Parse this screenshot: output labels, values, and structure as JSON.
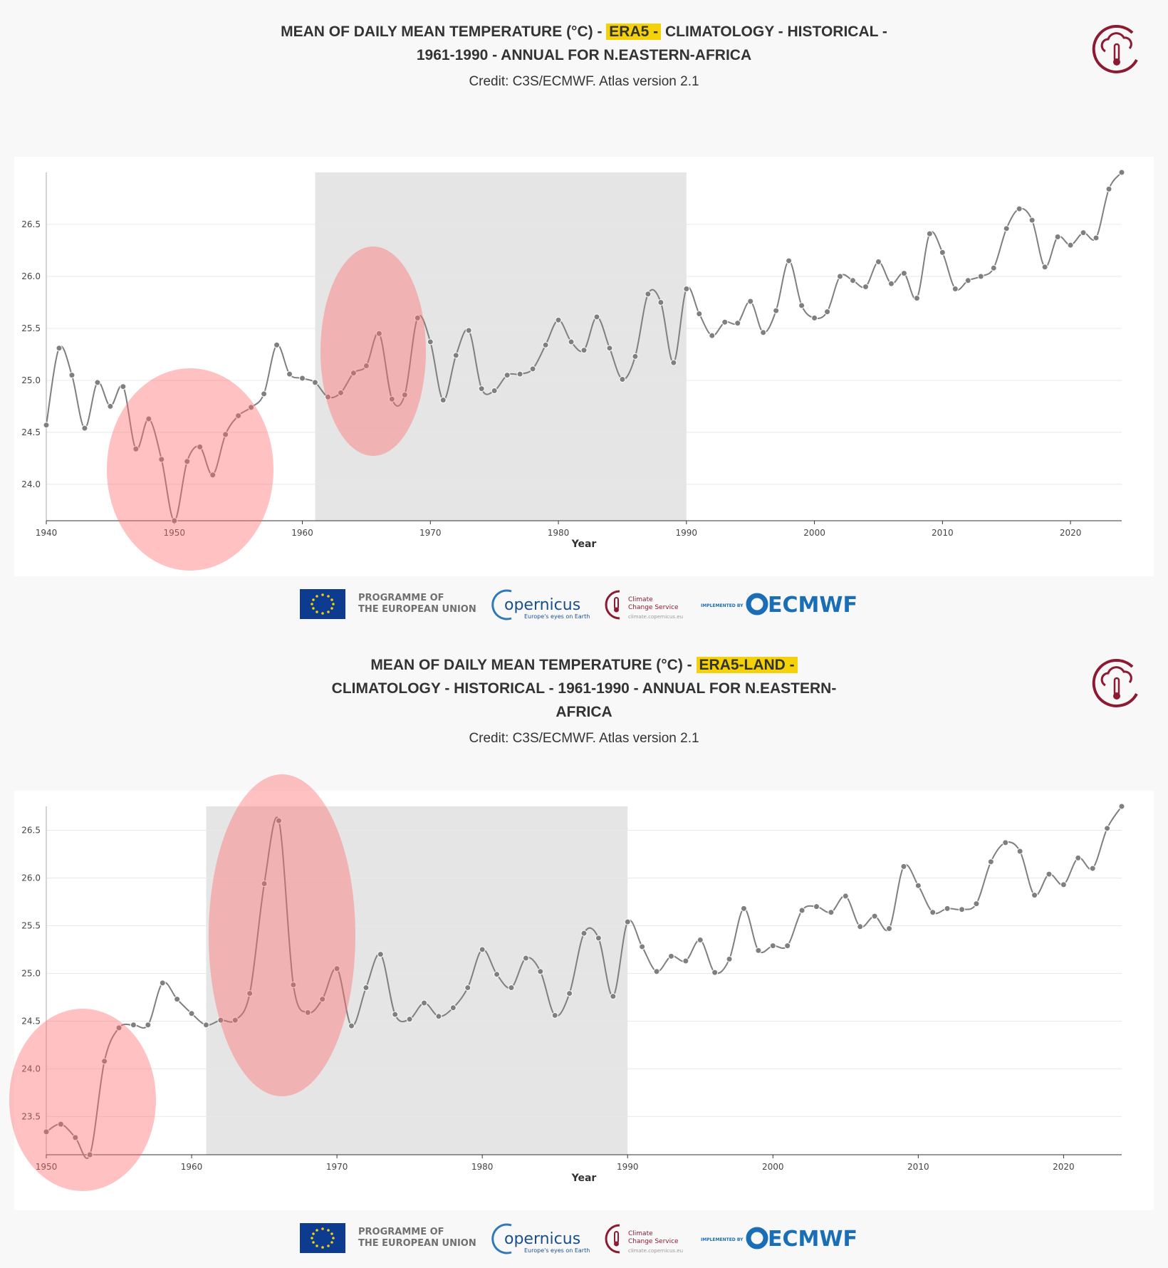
{
  "chart_data": [
    {
      "type": "line",
      "title_start": "MEAN OF DAILY MEAN TEMPERATURE (°C) -",
      "title_dataset": "ERA5 -",
      "title_end": "CLIMATOLOGY - HISTORICAL - 1961-1990 - ANNUAL FOR N.EASTERN-AFRICA",
      "credit": "Credit: C3S/ECMWF. Atlas version 2.1",
      "xlabel": "Year",
      "color": "#7f7f7f",
      "grid": true,
      "highlight_range": [
        1961,
        1990
      ],
      "x": [
        1940,
        1941,
        1942,
        1943,
        1944,
        1945,
        1946,
        1947,
        1948,
        1949,
        1950,
        1951,
        1952,
        1953,
        1954,
        1955,
        1956,
        1957,
        1958,
        1959,
        1960,
        1961,
        1962,
        1963,
        1964,
        1965,
        1966,
        1967,
        1968,
        1969,
        1970,
        1971,
        1972,
        1973,
        1974,
        1975,
        1976,
        1977,
        1978,
        1979,
        1980,
        1981,
        1982,
        1983,
        1984,
        1985,
        1986,
        1987,
        1988,
        1989,
        1990,
        1991,
        1992,
        1993,
        1994,
        1995,
        1996,
        1997,
        1998,
        1999,
        2000,
        2001,
        2002,
        2003,
        2004,
        2005,
        2006,
        2007,
        2008,
        2009,
        2010,
        2011,
        2012,
        2013,
        2014,
        2015,
        2016,
        2017,
        2018,
        2019,
        2020,
        2021,
        2022,
        2023,
        2024
      ],
      "values": [
        24.57,
        25.31,
        25.05,
        24.54,
        24.98,
        24.75,
        24.94,
        24.34,
        24.63,
        24.24,
        23.65,
        24.22,
        24.36,
        24.09,
        24.48,
        24.66,
        24.74,
        24.87,
        25.34,
        25.06,
        25.02,
        24.98,
        24.84,
        24.88,
        25.07,
        25.14,
        25.45,
        24.82,
        24.86,
        25.6,
        25.37,
        24.81,
        25.24,
        25.48,
        24.92,
        24.9,
        25.05,
        25.06,
        25.11,
        25.34,
        25.58,
        25.37,
        25.29,
        25.61,
        25.31,
        25.01,
        25.23,
        25.83,
        25.75,
        25.17,
        25.88,
        25.64,
        25.43,
        25.56,
        25.55,
        25.76,
        25.46,
        25.67,
        26.15,
        25.72,
        25.6,
        25.66,
        26.0,
        25.96,
        25.9,
        26.14,
        25.93,
        26.03,
        25.79,
        26.41,
        26.23,
        25.88,
        25.96,
        26.0,
        26.08,
        26.46,
        26.65,
        26.54,
        26.09,
        26.38,
        26.3,
        26.42,
        26.37,
        26.84,
        27.0
      ],
      "xlim": [
        1940,
        2024
      ],
      "xticks": [
        1940,
        1950,
        1960,
        1970,
        1980,
        1990,
        2000,
        2010,
        2020
      ],
      "ylim": [
        23.65,
        27.0
      ],
      "yticks": [
        {
          "value": 24,
          "label": "24.0"
        },
        24.5,
        {
          "value": 25,
          "label": "25.0"
        },
        25.5,
        {
          "value": 26,
          "label": "26.0"
        },
        26.5
      ]
    },
    {
      "type": "line",
      "title_start": "MEAN OF DAILY MEAN TEMPERATURE (°C) -",
      "title_dataset": "ERA5-LAND -",
      "title_end": "CLIMATOLOGY - HISTORICAL - 1961-1990 - ANNUAL FOR N.EASTERN-AFRICA",
      "credit": "Credit: C3S/ECMWF. Atlas version 2.1",
      "xlabel": "Year",
      "color": "#7f7f7f",
      "grid": true,
      "highlight_range": [
        1961,
        1990
      ],
      "x": [
        1950,
        1951,
        1952,
        1953,
        1954,
        1955,
        1956,
        1957,
        1958,
        1959,
        1960,
        1961,
        1962,
        1963,
        1964,
        1965,
        1966,
        1967,
        1968,
        1969,
        1970,
        1971,
        1972,
        1973,
        1974,
        1975,
        1976,
        1977,
        1978,
        1979,
        1980,
        1981,
        1982,
        1983,
        1984,
        1985,
        1986,
        1987,
        1988,
        1989,
        1990,
        1991,
        1992,
        1993,
        1994,
        1995,
        1996,
        1997,
        1998,
        1999,
        2000,
        2001,
        2002,
        2003,
        2004,
        2005,
        2006,
        2007,
        2008,
        2009,
        2010,
        2011,
        2012,
        2013,
        2014,
        2015,
        2016,
        2017,
        2018,
        2019,
        2020,
        2021,
        2022,
        2023,
        2024
      ],
      "values": [
        23.34,
        23.42,
        23.28,
        23.1,
        24.08,
        24.43,
        24.46,
        24.46,
        24.9,
        24.73,
        24.58,
        24.46,
        24.51,
        24.51,
        24.79,
        25.94,
        26.6,
        24.88,
        24.59,
        24.73,
        25.05,
        24.45,
        24.85,
        25.2,
        24.57,
        24.52,
        24.69,
        24.55,
        24.64,
        24.85,
        25.25,
        24.99,
        24.85,
        25.16,
        25.02,
        24.56,
        24.79,
        25.42,
        25.37,
        24.76,
        25.54,
        25.28,
        25.02,
        25.18,
        25.13,
        25.35,
        25.01,
        25.15,
        25.68,
        25.24,
        25.29,
        25.29,
        25.66,
        25.7,
        25.64,
        25.81,
        25.49,
        25.6,
        25.47,
        26.12,
        25.92,
        25.64,
        25.68,
        25.67,
        25.73,
        26.17,
        26.37,
        26.28,
        25.82,
        26.04,
        25.93,
        26.21,
        26.1,
        26.52,
        26.75
      ],
      "xlim": [
        1950,
        2024
      ],
      "xticks": [
        1950,
        1960,
        1970,
        1980,
        1990,
        2000,
        2010,
        2020
      ],
      "ylim": [
        23.1,
        26.75
      ],
      "yticks": [
        23.5,
        {
          "value": 24,
          "label": "24.0"
        },
        24.5,
        {
          "value": 25,
          "label": "25.0"
        },
        25.5,
        {
          "value": 26,
          "label": "26.0"
        },
        26.5
      ]
    }
  ],
  "footer": {
    "eu_line1": "PROGRAMME OF",
    "eu_line2": "THE EUROPEAN UNION",
    "copernicus": "opernicus",
    "copernicus_tagline": "Europe's eyes on Earth",
    "c3s_line1": "Climate",
    "c3s_line2": "Change Service",
    "c3s_url": "climate.copernicus.eu",
    "implemented_by": "IMPLEMENTED BY",
    "ecmwf": "ECMWF"
  }
}
